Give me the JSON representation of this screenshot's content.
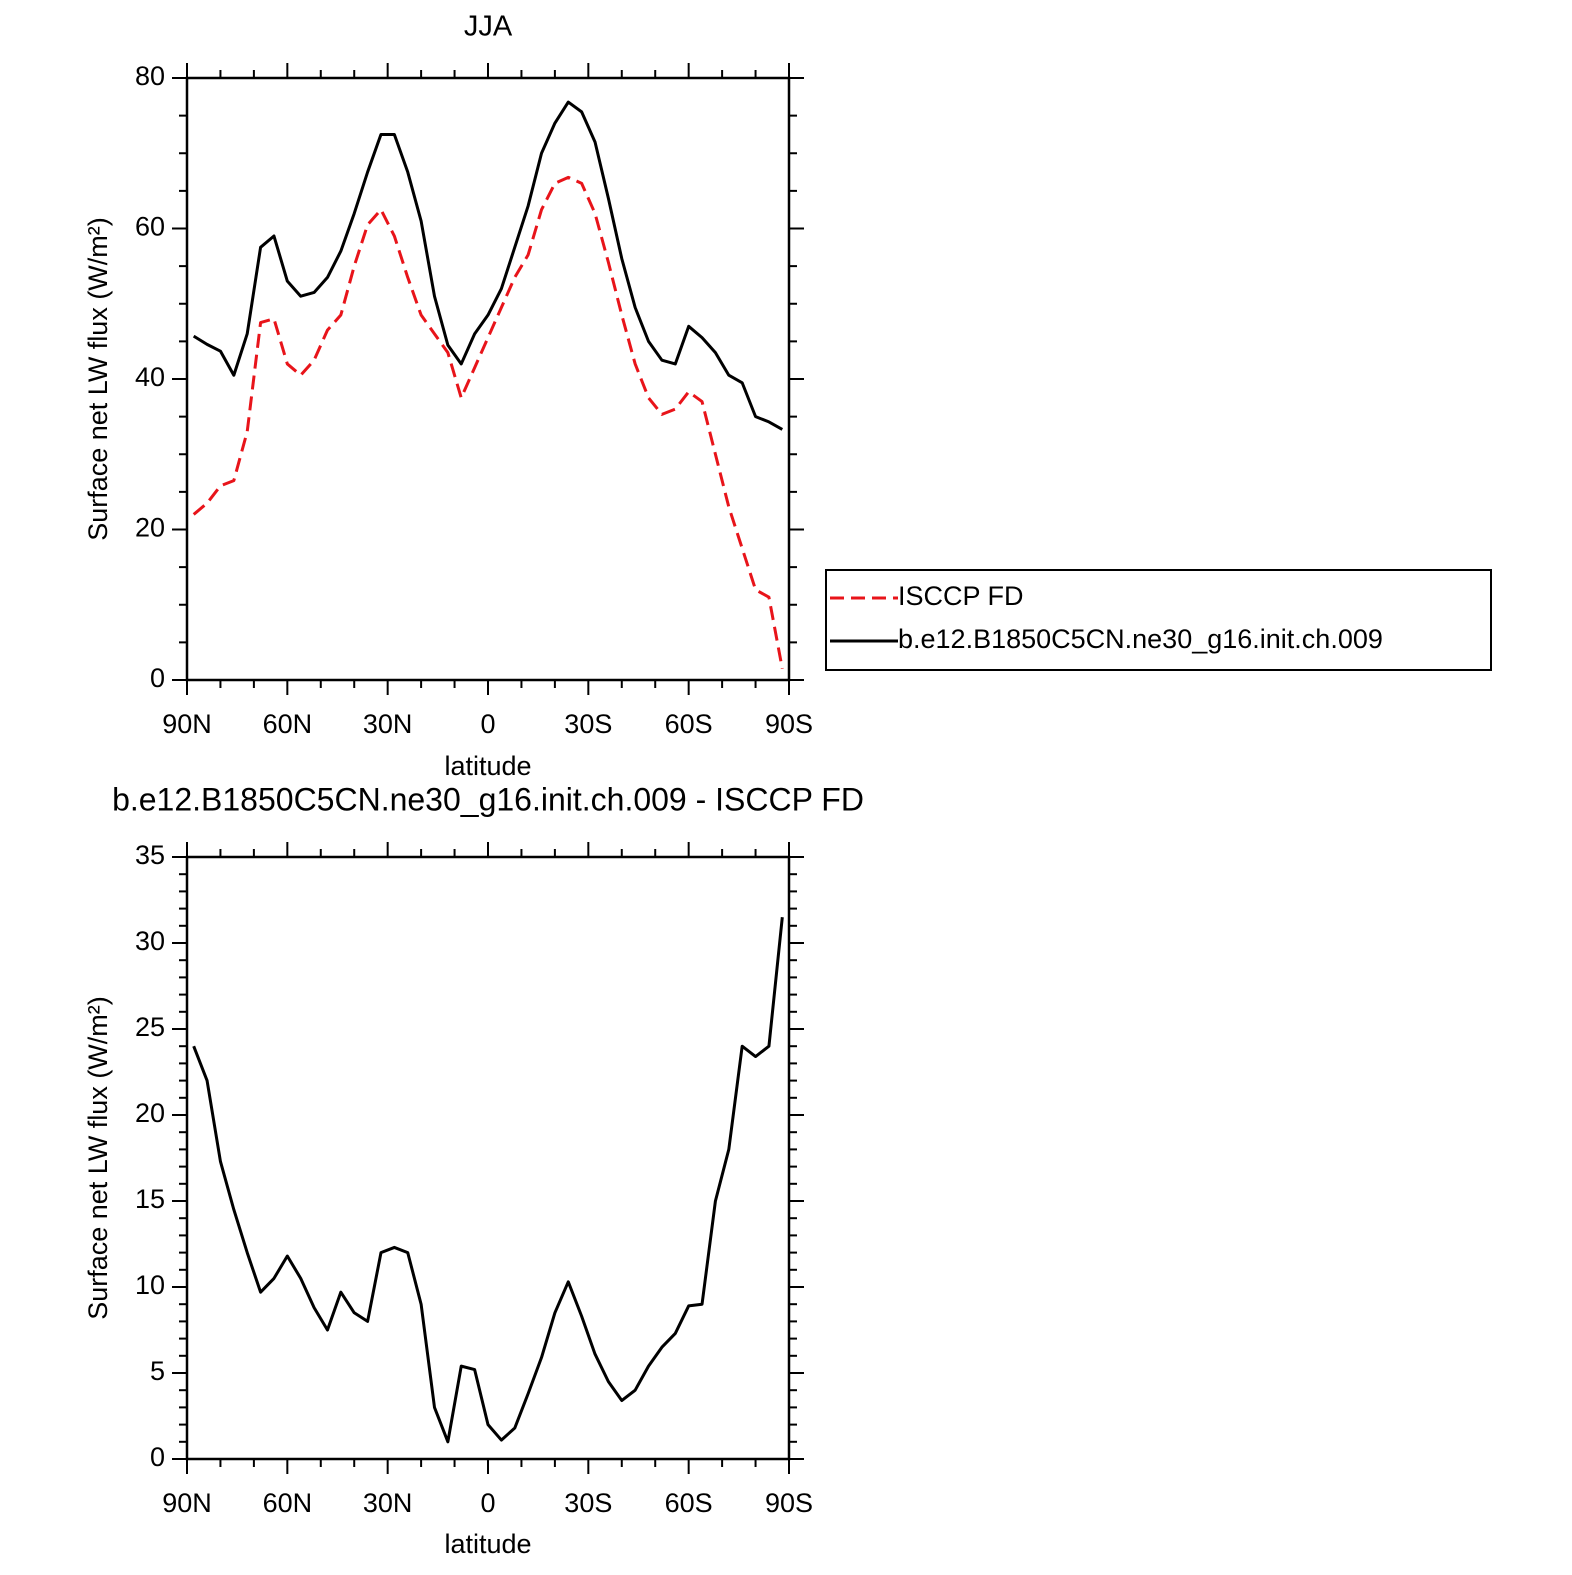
{
  "chart_data": [
    {
      "type": "line",
      "title": "JJA",
      "xlabel": "latitude",
      "ylabel": "Surface net LW flux (W/m²)",
      "x": [
        88,
        84,
        80,
        76,
        72,
        68,
        64,
        60,
        56,
        52,
        48,
        44,
        40,
        36,
        32,
        28,
        24,
        20,
        16,
        12,
        8,
        4,
        0,
        -4,
        -8,
        -12,
        -16,
        -20,
        -24,
        -28,
        -32,
        -36,
        -40,
        -44,
        -48,
        -52,
        -56,
        -60,
        -64,
        -68,
        -72,
        -76,
        -80,
        -84,
        -88
      ],
      "series": [
        {
          "name": "ISCCP FD",
          "color": "#e8141a",
          "dash": "dashed",
          "values": [
            22,
            23.5,
            25.8,
            26.5,
            33,
            47.5,
            48,
            42,
            40.5,
            42.5,
            46.5,
            48.5,
            55,
            60.5,
            62.5,
            59,
            53.5,
            48.5,
            46,
            43.5,
            37.5,
            41.5,
            45.5,
            49.5,
            53.5,
            56.5,
            62.5,
            66,
            66.8,
            66,
            62,
            55.5,
            48.5,
            42,
            37.5,
            35.3,
            36,
            38.3,
            37,
            30,
            23,
            17.5,
            12,
            11,
            1.5
          ]
        },
        {
          "name": "b.e12.B1850C5CN.ne30_g16.init.ch.009",
          "color": "#000000",
          "dash": "solid",
          "values": [
            45.7,
            44.6,
            43.7,
            40.5,
            46,
            57.5,
            59,
            53,
            51,
            51.5,
            53.5,
            57,
            62,
            67.5,
            72.5,
            72.5,
            67.5,
            61,
            51,
            44.5,
            42,
            46,
            48.5,
            52,
            57.5,
            63,
            70,
            74,
            76.8,
            75.5,
            71.5,
            64,
            56,
            49.5,
            45,
            42.5,
            42,
            47,
            45.5,
            43.5,
            40.5,
            39.5,
            35,
            34.3,
            33.3
          ]
        }
      ],
      "xlim": [
        90,
        -90
      ],
      "xticks": [
        {
          "value": 90,
          "label": "90N"
        },
        {
          "value": 60,
          "label": "60N"
        },
        {
          "value": 30,
          "label": "30N"
        },
        0,
        {
          "value": -30,
          "label": "30S"
        },
        {
          "value": -60,
          "label": "60S"
        },
        {
          "value": -90,
          "label": "90S"
        }
      ],
      "xminorticks": [
        80,
        70,
        50,
        40,
        20,
        10,
        -10,
        -20,
        -40,
        -50,
        -70,
        -80
      ],
      "ylim": [
        0,
        80
      ],
      "yticks": [
        0,
        20,
        40,
        60,
        80
      ],
      "yminorticks": [
        5,
        10,
        15,
        25,
        30,
        35,
        45,
        50,
        55,
        65,
        70,
        75
      ],
      "legend": "outside right"
    },
    {
      "type": "line",
      "title": "b.e12.B1850C5CN.ne30_g16.init.ch.009 - ISCCP FD",
      "xlabel": "latitude",
      "ylabel": "Surface net LW flux (W/m²)",
      "x": [
        88,
        84,
        80,
        76,
        72,
        68,
        64,
        60,
        56,
        52,
        48,
        44,
        40,
        36,
        32,
        28,
        24,
        20,
        16,
        12,
        8,
        4,
        0,
        -4,
        -8,
        -12,
        -16,
        -20,
        -24,
        -28,
        -32,
        -36,
        -40,
        -44,
        -48,
        -52,
        -56,
        -60,
        -64,
        -68,
        -72,
        -76,
        -80,
        -84,
        -88
      ],
      "color": "#000000",
      "values": [
        24,
        22,
        17.3,
        14.5,
        12,
        9.7,
        10.5,
        11.8,
        10.5,
        8.8,
        7.5,
        9.7,
        8.5,
        8,
        12,
        12.3,
        12,
        9,
        3,
        1,
        5.4,
        5.2,
        2,
        1.1,
        1.8,
        3.8,
        5.9,
        8.5,
        10.3,
        8.3,
        6.1,
        4.5,
        3.4,
        4,
        5.4,
        6.5,
        7.3,
        8.9,
        9,
        15,
        18,
        24,
        23.4,
        24,
        31.5
      ],
      "xlim": [
        90,
        -90
      ],
      "xticks": [
        {
          "value": 90,
          "label": "90N"
        },
        {
          "value": 60,
          "label": "60N"
        },
        {
          "value": 30,
          "label": "30N"
        },
        0,
        {
          "value": -30,
          "label": "30S"
        },
        {
          "value": -60,
          "label": "60S"
        },
        {
          "value": -90,
          "label": "90S"
        }
      ],
      "xminorticks": [
        80,
        70,
        50,
        40,
        20,
        10,
        -10,
        -20,
        -40,
        -50,
        -70,
        -80
      ],
      "ylim": [
        0,
        35
      ],
      "yticks": [
        0,
        5,
        10,
        15,
        20,
        25,
        30,
        35
      ],
      "yminorticks": [
        1,
        2,
        3,
        4,
        6,
        7,
        8,
        9,
        11,
        12,
        13,
        14,
        16,
        17,
        18,
        19,
        21,
        22,
        23,
        24,
        26,
        27,
        28,
        29,
        31,
        32,
        33,
        34
      ]
    }
  ]
}
